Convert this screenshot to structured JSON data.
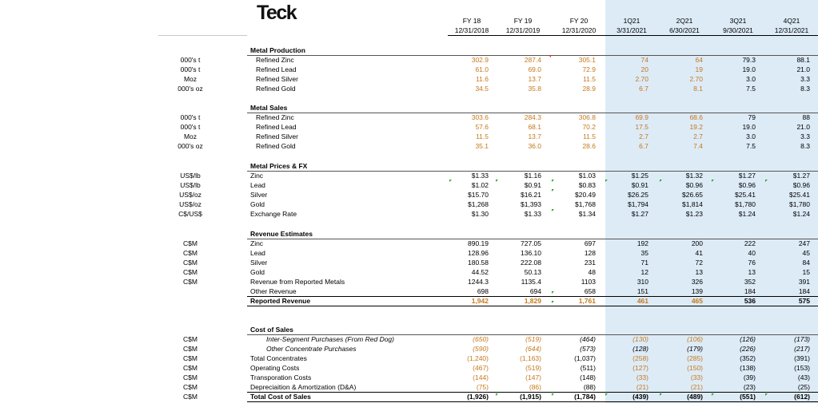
{
  "logo_text": "Teck",
  "columns": [
    {
      "line1": "FY 18",
      "line2": "12/31/2018"
    },
    {
      "line1": "FY 19",
      "line2": "12/31/2019"
    },
    {
      "line1": "FY 20",
      "line2": "12/31/2020"
    },
    {
      "line1": "1Q21",
      "line2": "3/31/2021"
    },
    {
      "line1": "2Q21",
      "line2": "6/30/2021"
    },
    {
      "line1": "3Q21",
      "line2": "9/30/2021"
    },
    {
      "line1": "4Q21",
      "line2": "12/31/2021"
    }
  ],
  "colors": {
    "forecast_shade": "#ddebf7",
    "input_orange": "#c5791c",
    "note_green": "#2aa52a"
  },
  "sections": [
    {
      "title": "Metal Production",
      "rows": [
        {
          "unit": "000's t",
          "label": "Refined Zinc",
          "values": [
            "302.9",
            "287.4",
            "305.1",
            "74",
            "64",
            "79.3",
            "88.1"
          ],
          "orange": [
            1,
            1,
            1,
            1,
            1,
            0,
            0
          ]
        },
        {
          "unit": "000's t",
          "label": "Refined Lead",
          "values": [
            "61.0",
            "69.0",
            "72.9",
            "20",
            "19",
            "19.0",
            "21.0"
          ],
          "orange": [
            1,
            1,
            1,
            1,
            1,
            0,
            0
          ]
        },
        {
          "unit": "Moz",
          "label": "Refined Silver",
          "values": [
            "11.6",
            "13.7",
            "11.5",
            "2.70",
            "2.70",
            "3.0",
            "3.3"
          ],
          "orange": [
            1,
            1,
            1,
            1,
            1,
            0,
            0
          ]
        },
        {
          "unit": "000's oz",
          "label": "Refined Gold",
          "values": [
            "34.5",
            "35.8",
            "28.9",
            "6.7",
            "8.1",
            "7.5",
            "8.3"
          ],
          "orange": [
            1,
            1,
            1,
            1,
            1,
            0,
            0
          ]
        }
      ]
    },
    {
      "title": "Metal Sales",
      "rows": [
        {
          "unit": "000's t",
          "label": "Refined Zinc",
          "values": [
            "303.6",
            "284.3",
            "306.8",
            "69.9",
            "68.6",
            "79",
            "88"
          ],
          "orange": [
            1,
            1,
            1,
            1,
            1,
            0,
            0
          ]
        },
        {
          "unit": "000's t",
          "label": "Refined Lead",
          "values": [
            "57.6",
            "68.1",
            "70.2",
            "17.5",
            "19.2",
            "19.0",
            "21.0"
          ],
          "orange": [
            1,
            1,
            1,
            1,
            1,
            0,
            0
          ]
        },
        {
          "unit": "Moz",
          "label": "Refined Silver",
          "values": [
            "11.5",
            "13.7",
            "11.5",
            "2.7",
            "2.7",
            "3.0",
            "3.3"
          ],
          "orange": [
            1,
            1,
            1,
            1,
            1,
            0,
            0
          ]
        },
        {
          "unit": "000's oz",
          "label": "Refined Gold",
          "values": [
            "35.1",
            "36.0",
            "28.6",
            "6.7",
            "7.4",
            "7.5",
            "8.3"
          ],
          "orange": [
            1,
            1,
            1,
            1,
            1,
            0,
            0
          ]
        }
      ]
    },
    {
      "title": "Metal Prices & FX",
      "rows": [
        {
          "unit": "US$/lb",
          "label": "Zinc",
          "values": [
            "$1.33",
            "$1.16",
            "$1.03",
            "$1.25",
            "$1.32",
            "$1.27",
            "$1.27"
          ],
          "orange": [
            0,
            0,
            0,
            0,
            0,
            0,
            0
          ]
        },
        {
          "unit": "US$/lb",
          "label": "Lead",
          "values": [
            "$1.02",
            "$0.91",
            "$0.83",
            "$0.91",
            "$0.96",
            "$0.96",
            "$0.96"
          ],
          "orange": [
            0,
            0,
            0,
            0,
            0,
            0,
            0
          ]
        },
        {
          "unit": "US$/oz",
          "label": "Silver",
          "values": [
            "$15.70",
            "$16.21",
            "$20.49",
            "$26.25",
            "$26.65",
            "$25.41",
            "$25.41"
          ],
          "orange": [
            0,
            0,
            0,
            0,
            0,
            0,
            0
          ]
        },
        {
          "unit": "US$/oz",
          "label": "Gold",
          "values": [
            "$1,268",
            "$1,393",
            "$1,768",
            "$1,794",
            "$1,814",
            "$1,780",
            "$1,780"
          ],
          "orange": [
            0,
            0,
            0,
            0,
            0,
            0,
            0
          ]
        },
        {
          "unit": "C$/US$",
          "label": "Exchange Rate",
          "values": [
            "$1.30",
            "$1.33",
            "$1.34",
            "$1.27",
            "$1.23",
            "$1.24",
            "$1.24"
          ],
          "orange": [
            0,
            0,
            0,
            0,
            0,
            0,
            0
          ]
        }
      ]
    },
    {
      "title": "Revenue Estimates",
      "rows": [
        {
          "unit": "C$M",
          "label": "Zinc",
          "values": [
            "890.19",
            "727.05",
            "697",
            "192",
            "200",
            "222",
            "247"
          ],
          "orange": [
            0,
            0,
            0,
            0,
            0,
            0,
            0
          ]
        },
        {
          "unit": "C$M",
          "label": "Lead",
          "values": [
            "128.96",
            "136.10",
            "128",
            "35",
            "41",
            "40",
            "45"
          ],
          "orange": [
            0,
            0,
            0,
            0,
            0,
            0,
            0
          ]
        },
        {
          "unit": "C$M",
          "label": "Silver",
          "values": [
            "180.58",
            "222.08",
            "231",
            "71",
            "72",
            "76",
            "84"
          ],
          "orange": [
            0,
            0,
            0,
            0,
            0,
            0,
            0
          ]
        },
        {
          "unit": "C$M",
          "label": "Gold",
          "values": [
            "44.52",
            "50.13",
            "48",
            "12",
            "13",
            "13",
            "15"
          ],
          "orange": [
            0,
            0,
            0,
            0,
            0,
            0,
            0
          ]
        },
        {
          "unit": "C$M",
          "label": "Revenue from Reported Metals",
          "values": [
            "1244.3",
            "1135.4",
            "1103",
            "310",
            "326",
            "352",
            "391"
          ],
          "orange": [
            0,
            0,
            0,
            0,
            0,
            0,
            0
          ]
        },
        {
          "unit": "",
          "label": "Other Revenue",
          "values": [
            "698",
            "694",
            "658",
            "151",
            "139",
            "184",
            "184"
          ],
          "orange": [
            0,
            0,
            0,
            0,
            0,
            0,
            0
          ]
        },
        {
          "unit": "",
          "label": "Reported Revenue",
          "values": [
            "1,942",
            "1,829",
            "1,761",
            "461",
            "465",
            "536",
            "575"
          ],
          "orange": [
            1,
            1,
            1,
            1,
            1,
            0,
            0
          ],
          "bold": true
        }
      ]
    },
    {
      "title": "Cost of Sales",
      "rows": [
        {
          "unit": "C$M",
          "label": "Inter-Segment Purchases (From Red Dog)",
          "values": [
            "(650)",
            "(519)",
            "(464)",
            "(130)",
            "(106)",
            "(126)",
            "(173)"
          ],
          "orange": [
            1,
            1,
            0,
            1,
            1,
            0,
            0
          ],
          "italic": true,
          "indent": 2
        },
        {
          "unit": "C$M",
          "label": "Other Concentrate Purchases",
          "values": [
            "(590)",
            "(644)",
            "(573)",
            "(128)",
            "(179)",
            "(226)",
            "(217)"
          ],
          "orange": [
            1,
            1,
            0,
            0,
            0,
            0,
            0
          ],
          "italic": true,
          "indent": 2
        },
        {
          "unit": "C$M",
          "label": "Total Concentrates",
          "values": [
            "(1,240)",
            "(1,163)",
            "(1,037)",
            "(258)",
            "(285)",
            "(352)",
            "(391)"
          ],
          "orange": [
            1,
            1,
            0,
            1,
            1,
            0,
            0
          ]
        },
        {
          "unit": "C$M",
          "label": "Operating Costs",
          "values": [
            "(467)",
            "(519)",
            "(511)",
            "(127)",
            "(150)",
            "(138)",
            "(153)"
          ],
          "orange": [
            1,
            1,
            0,
            1,
            1,
            0,
            0
          ]
        },
        {
          "unit": "C$M",
          "label": "Transporation Costs",
          "values": [
            "(144)",
            "(147)",
            "(148)",
            "(33)",
            "(33)",
            "(39)",
            "(43)"
          ],
          "orange": [
            1,
            1,
            0,
            1,
            1,
            0,
            0
          ]
        },
        {
          "unit": "C$M",
          "label": "Depreciaition & Amortization (D&A)",
          "values": [
            "(75)",
            "(86)",
            "(88)",
            "(21)",
            "(21)",
            "(23)",
            "(25)"
          ],
          "orange": [
            1,
            1,
            0,
            1,
            1,
            0,
            0
          ]
        },
        {
          "unit": "C$M",
          "label": "Total Cost of Sales",
          "values": [
            "(1,926)",
            "(1,915)",
            "(1,784)",
            "(439)",
            "(489)",
            "(551)",
            "(612)"
          ],
          "orange": [
            0,
            0,
            0,
            0,
            0,
            0,
            0
          ],
          "bold": true
        }
      ]
    }
  ]
}
